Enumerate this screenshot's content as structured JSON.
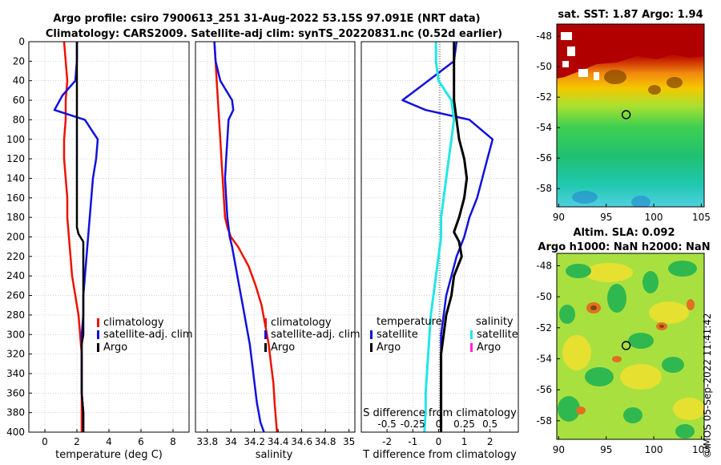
{
  "title_line1": "Argo profile: csiro 7900613_251 31-Aug-2022 53.15S 97.091E (NRT data)",
  "title_line2": "Climatology: CARS2009. Satellite-adj clim: synTS_20220831.nc (0.52d earlier)",
  "stamp": "©IMOS 05-Sep-2022 11:41:42",
  "colors": {
    "climatology": "#ee1100",
    "satellite": "#1111dd",
    "argo": "#000000",
    "salinity_sat": "#22e6e6",
    "salinity_argo": "#ff22dd"
  },
  "chart_data": [
    {
      "type": "line",
      "id": "temperature",
      "xlabel": "temperature (deg C)",
      "xlim": [
        -1,
        9
      ],
      "ylim": [
        0,
        400
      ],
      "xticks": [
        0,
        2,
        4,
        6,
        8
      ],
      "xtick_labels": [
        "0",
        "2",
        "4",
        "6",
        "8"
      ],
      "yticks": [
        0,
        20,
        40,
        60,
        80,
        100,
        120,
        140,
        160,
        180,
        200,
        220,
        240,
        260,
        280,
        300,
        320,
        340,
        360,
        380,
        400
      ],
      "legend": [
        "climatology",
        "satellite-adj. clim",
        "Argo"
      ],
      "series": [
        {
          "name": "climatology",
          "x": [
            1.2,
            1.3,
            1.4,
            1.3,
            1.3,
            1.2,
            1.2,
            1.3,
            1.4,
            1.4,
            1.5,
            1.6,
            1.7,
            1.9,
            2.1,
            2.2,
            2.3,
            2.3,
            2.3,
            2.3,
            2.3
          ],
          "y": [
            0,
            20,
            40,
            60,
            80,
            100,
            120,
            140,
            160,
            180,
            200,
            220,
            240,
            260,
            280,
            300,
            320,
            340,
            360,
            380,
            400
          ]
        },
        {
          "name": "satellite-adj. clim",
          "x": [
            2.0,
            2.0,
            1.9,
            1.1,
            0.6,
            2.5,
            3.3,
            3.2,
            3.0,
            2.9,
            2.8,
            2.7,
            2.6,
            2.5,
            2.4,
            2.4,
            2.3,
            2.3,
            2.3,
            2.3,
            2.4,
            2.4
          ],
          "y": [
            0,
            20,
            40,
            55,
            70,
            80,
            100,
            120,
            140,
            160,
            180,
            200,
            220,
            240,
            260,
            280,
            300,
            320,
            340,
            360,
            380,
            400
          ]
        },
        {
          "name": "Argo",
          "x": [
            2.0,
            2.0,
            2.0,
            2.0,
            2.0,
            2.0,
            2.0,
            2.0,
            2.0,
            2.0,
            2.0,
            2.1,
            2.4,
            2.4,
            2.4,
            2.4,
            2.4,
            2.4,
            2.3,
            2.3,
            2.3,
            2.3,
            2.4,
            2.4
          ],
          "y": [
            0,
            20,
            40,
            60,
            80,
            100,
            120,
            140,
            160,
            180,
            190,
            197,
            205,
            220,
            240,
            260,
            280,
            300,
            310,
            320,
            340,
            360,
            380,
            400
          ]
        }
      ]
    },
    {
      "type": "line",
      "id": "salinity",
      "xlabel": "salinity",
      "xlim": [
        33.7,
        35.05
      ],
      "ylim": [
        0,
        400
      ],
      "xticks": [
        33.8,
        34,
        34.2,
        34.4,
        34.6,
        34.8,
        35
      ],
      "xtick_labels": [
        "33.8",
        "34",
        "34.2",
        "34.4",
        "34.6",
        "34.8",
        "35"
      ],
      "legend": [
        "climatology",
        "satellite-adj. clim",
        "Argo"
      ],
      "series": [
        {
          "name": "climatology",
          "x": [
            33.86,
            33.87,
            33.88,
            33.89,
            33.9,
            33.91,
            33.92,
            33.93,
            33.94,
            33.95,
            33.97,
            34.0,
            34.06,
            34.15,
            34.21,
            34.26,
            34.29,
            34.32,
            34.34,
            34.36,
            34.37,
            34.39
          ],
          "y": [
            0,
            20,
            40,
            60,
            80,
            100,
            120,
            140,
            160,
            180,
            190,
            200,
            210,
            230,
            250,
            270,
            290,
            310,
            330,
            350,
            370,
            400
          ]
        },
        {
          "name": "satellite-adj. clim",
          "x": [
            33.86,
            33.87,
            33.91,
            34.01,
            34.02,
            33.98,
            33.97,
            33.96,
            33.95,
            33.96,
            33.97,
            33.98,
            33.99,
            34.01,
            34.04,
            34.07,
            34.1,
            34.13,
            34.16,
            34.18,
            34.2,
            34.22,
            34.25,
            34.28
          ],
          "y": [
            0,
            20,
            40,
            60,
            70,
            80,
            100,
            120,
            140,
            160,
            180,
            190,
            200,
            210,
            230,
            250,
            270,
            290,
            310,
            330,
            350,
            370,
            390,
            400
          ]
        }
      ]
    },
    {
      "type": "line",
      "id": "differences",
      "xlabel": "T difference from climatology",
      "xlabel_top": "S difference from climatology",
      "xlim": [
        -3,
        3.1
      ],
      "ylim": [
        0,
        400
      ],
      "xticks": [
        -2,
        -1,
        0,
        1,
        2
      ],
      "xtick_labels": [
        "-2",
        "-1",
        "0",
        "1",
        "2"
      ],
      "top_ticks": [
        -0.5,
        -0.25,
        0,
        0.25,
        0.5
      ],
      "top_tick_labels": [
        "-0.5",
        "-0.25",
        "0",
        "0.25",
        "0.5"
      ],
      "s_scale": 0.25,
      "legend_left_title": "temperature",
      "legend_right_title": "salinity",
      "legend_left": [
        "satellite",
        "Argo"
      ],
      "legend_right": [
        "satellite",
        "Argo"
      ],
      "series": [
        {
          "name": "T satellite",
          "x": [
            0.7,
            0.6,
            -0.4,
            -1.4,
            -0.5,
            1.2,
            2.1,
            1.9,
            1.7,
            1.5,
            1.2,
            1.0,
            0.7,
            0.5,
            0.3,
            0.2,
            0.1,
            0.1,
            0.1,
            0.1,
            0.1
          ],
          "y": [
            0,
            20,
            40,
            60,
            70,
            80,
            100,
            120,
            140,
            160,
            180,
            200,
            220,
            240,
            260,
            280,
            300,
            320,
            340,
            360,
            400
          ]
        },
        {
          "name": "T Argo",
          "x": [
            0.6,
            0.6,
            0.6,
            0.6,
            0.7,
            0.8,
            1.0,
            1.1,
            1.0,
            0.8,
            0.6,
            0.8,
            0.9,
            0.6,
            0.5,
            0.3,
            0.2,
            0.1,
            0.1,
            0.1,
            0.1
          ],
          "y": [
            0,
            20,
            40,
            60,
            80,
            100,
            120,
            140,
            160,
            180,
            195,
            205,
            220,
            240,
            260,
            280,
            300,
            320,
            340,
            360,
            400
          ]
        },
        {
          "name": "S satellite",
          "x": [
            -0.1,
            -0.1,
            0.0,
            0.5,
            0.6,
            0.5,
            0.4,
            0.3,
            0.2,
            0.1,
            0.1,
            0.0,
            -0.1,
            -0.2,
            -0.3,
            -0.35,
            -0.4,
            -0.45,
            -0.5,
            -0.5,
            -0.55
          ],
          "y": [
            0,
            20,
            40,
            60,
            80,
            100,
            120,
            140,
            160,
            180,
            200,
            220,
            240,
            260,
            280,
            300,
            320,
            340,
            360,
            380,
            400
          ]
        }
      ]
    },
    {
      "type": "heatmap",
      "id": "sst_map",
      "title": "sat. SST: 1.87 Argo: 1.94",
      "xticks": [
        90,
        95,
        100,
        105
      ],
      "xtick_labels": [
        "90",
        "95",
        "100",
        "105"
      ],
      "yticks": [
        -48,
        -50,
        -52,
        -54,
        -56,
        -58
      ],
      "ytick_labels": [
        "-48",
        "-50",
        "-52",
        "-54",
        "-56",
        "-58"
      ],
      "xlim": [
        89.8,
        105.3
      ],
      "ylim": [
        -59.2,
        -47.2
      ],
      "marker": {
        "lon": 97.091,
        "lat": -53.15
      }
    },
    {
      "type": "heatmap",
      "id": "sla_map",
      "title": "Altim. SLA: 0.092",
      "subtitle": "Argo h1000: NaN h2000: NaN",
      "xticks": [
        90,
        95,
        100,
        105
      ],
      "xtick_labels": [
        "90",
        "95",
        "100",
        "105"
      ],
      "yticks": [
        -48,
        -50,
        -52,
        -54,
        -56,
        -58
      ],
      "ytick_labels": [
        "-48",
        "-50",
        "-52",
        "-54",
        "-56",
        "-58"
      ],
      "xlim": [
        89.8,
        105.3
      ],
      "ylim": [
        -59.2,
        -47.2
      ],
      "marker": {
        "lon": 97.091,
        "lat": -53.15
      }
    }
  ]
}
